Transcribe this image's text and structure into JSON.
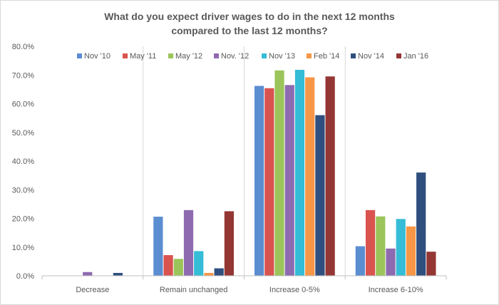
{
  "chart_data": {
    "type": "bar",
    "title": "What do you expect driver wages to do in the next 12 months\ncompared to the last 12 months?",
    "categories": [
      "Decrease",
      "Remain unchanged",
      "Increase 0-5%",
      "Increase 6-10%"
    ],
    "ylim": [
      0,
      80
    ],
    "yticks": [
      "0.0%",
      "10.0%",
      "20.0%",
      "30.0%",
      "40.0%",
      "50.0%",
      "60.0%",
      "70.0%",
      "80.0%"
    ],
    "legend_position": "top",
    "grid": false,
    "series": [
      {
        "name": "Nov '10",
        "color": "#5B8DD1",
        "values": [
          0,
          20.6,
          66.2,
          10.3
        ]
      },
      {
        "name": "May '11",
        "color": "#D9534F",
        "values": [
          0,
          7.2,
          65.4,
          22.9
        ]
      },
      {
        "name": "May '12",
        "color": "#9BC55A",
        "values": [
          0,
          5.9,
          71.6,
          20.7
        ]
      },
      {
        "name": "Nov. '12",
        "color": "#8E6BB0",
        "values": [
          1.3,
          22.9,
          66.5,
          9.5
        ]
      },
      {
        "name": "Nov '13",
        "color": "#35BCD6",
        "values": [
          0,
          8.6,
          71.8,
          19.8
        ]
      },
      {
        "name": "Feb '14",
        "color": "#F79646",
        "values": [
          0,
          1.0,
          69.2,
          17.2
        ]
      },
      {
        "name": "Nov '14",
        "color": "#2F4F7F",
        "values": [
          1.0,
          2.6,
          56.0,
          36.0
        ]
      },
      {
        "name": "Jan '16",
        "color": "#943634",
        "values": [
          0,
          22.5,
          69.5,
          8.4
        ]
      }
    ]
  }
}
